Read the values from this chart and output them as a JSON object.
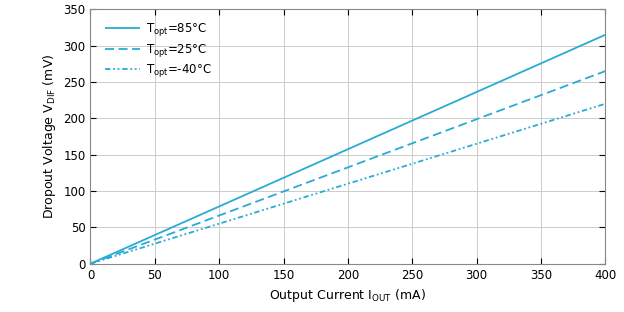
{
  "lines": [
    {
      "label_parts": [
        "T",
        "opt",
        "=85°C"
      ],
      "slope": 0.7875,
      "intercept": 0,
      "style": "solid",
      "color": "#29ABD4",
      "linewidth": 1.3
    },
    {
      "label_parts": [
        "T",
        "opt",
        "=25°C"
      ],
      "slope": 0.6625,
      "intercept": 0,
      "style": "dashed",
      "color": "#29ABD4",
      "linewidth": 1.3
    },
    {
      "label_parts": [
        "T",
        "opt",
        "=-40°C"
      ],
      "slope": 0.55,
      "intercept": 0,
      "style": "dashdot",
      "color": "#29ABD4",
      "linewidth": 1.3
    }
  ],
  "xlabel": "Output Current I",
  "xlabel_sub": "OUT",
  "xlabel_unit": " (mA)",
  "ylabel_main": "Dropout Voltage V",
  "ylabel_sub": "DIF",
  "ylabel_unit": " (mV)",
  "xlim": [
    0,
    400
  ],
  "ylim": [
    0,
    350
  ],
  "xticks": [
    0,
    50,
    100,
    150,
    200,
    250,
    300,
    350,
    400
  ],
  "yticks": [
    0,
    50,
    100,
    150,
    200,
    250,
    300,
    350
  ],
  "grid_color": "#CCCCCC",
  "background_color": "#FFFFFF",
  "legend_fontsize": 8.5,
  "axis_label_fontsize": 9,
  "tick_fontsize": 8.5
}
